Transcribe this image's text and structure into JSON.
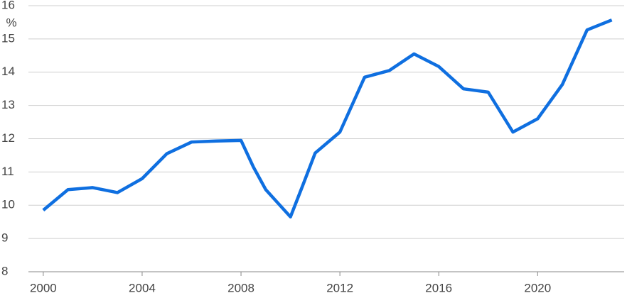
{
  "chart_data": {
    "type": "line",
    "y_label": "%",
    "x": [
      2000,
      2001,
      2002,
      2003,
      2004,
      2005,
      2006,
      2007,
      2008,
      2008.5,
      2009,
      2010,
      2010.5,
      2011,
      2012,
      2013,
      2014,
      2015,
      2016,
      2017,
      2018,
      2019,
      2020,
      2021,
      2022,
      2023
    ],
    "series": [
      {
        "color": "#0f6fe0",
        "values": [
          9.85,
          10.47,
          10.53,
          10.38,
          10.8,
          11.55,
          11.9,
          11.93,
          11.95,
          11.15,
          10.47,
          9.65,
          10.6,
          11.57,
          12.2,
          13.85,
          14.05,
          14.55,
          14.17,
          13.5,
          13.4,
          12.2,
          12.6,
          13.63,
          15.27,
          15.57
        ]
      }
    ],
    "xlim": [
      1999.4,
      2023.5
    ],
    "xticks": [
      2000,
      2004,
      2008,
      2012,
      2016,
      2020
    ],
    "ylim": [
      8,
      16
    ],
    "yticks": [
      8,
      9,
      10,
      11,
      12,
      13,
      14,
      15,
      16
    ],
    "grid": true
  }
}
